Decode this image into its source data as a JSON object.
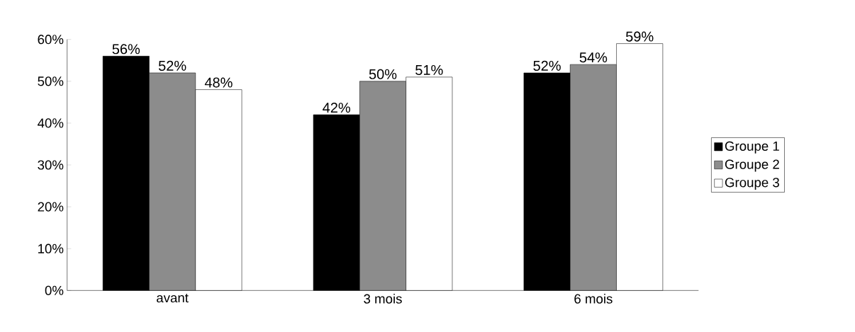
{
  "chart_data": {
    "type": "bar",
    "categories": [
      "avant",
      "3 mois",
      "6 mois"
    ],
    "series": [
      {
        "name": "Groupe 1",
        "color": "#000000",
        "values": [
          56,
          42,
          52
        ],
        "value_labels": [
          "56%",
          "42%",
          "52%"
        ]
      },
      {
        "name": "Groupe 2",
        "color": "#8c8c8c",
        "values": [
          52,
          50,
          54
        ],
        "value_labels": [
          "52%",
          "50%",
          "54%"
        ]
      },
      {
        "name": "Groupe 3",
        "color": "#ffffff",
        "values": [
          48,
          51,
          59
        ],
        "value_labels": [
          "48%",
          "51%",
          "59%"
        ]
      }
    ],
    "ylim": [
      0,
      60
    ],
    "yticks": [
      {
        "value": 0,
        "label": "0%"
      },
      {
        "value": 10,
        "label": "10%"
      },
      {
        "value": 20,
        "label": "20%"
      },
      {
        "value": 30,
        "label": "30%"
      },
      {
        "value": 40,
        "label": "40%"
      },
      {
        "value": 50,
        "label": "50%"
      },
      {
        "value": 60,
        "label": "60%"
      }
    ],
    "grid": false,
    "legend": "right"
  }
}
